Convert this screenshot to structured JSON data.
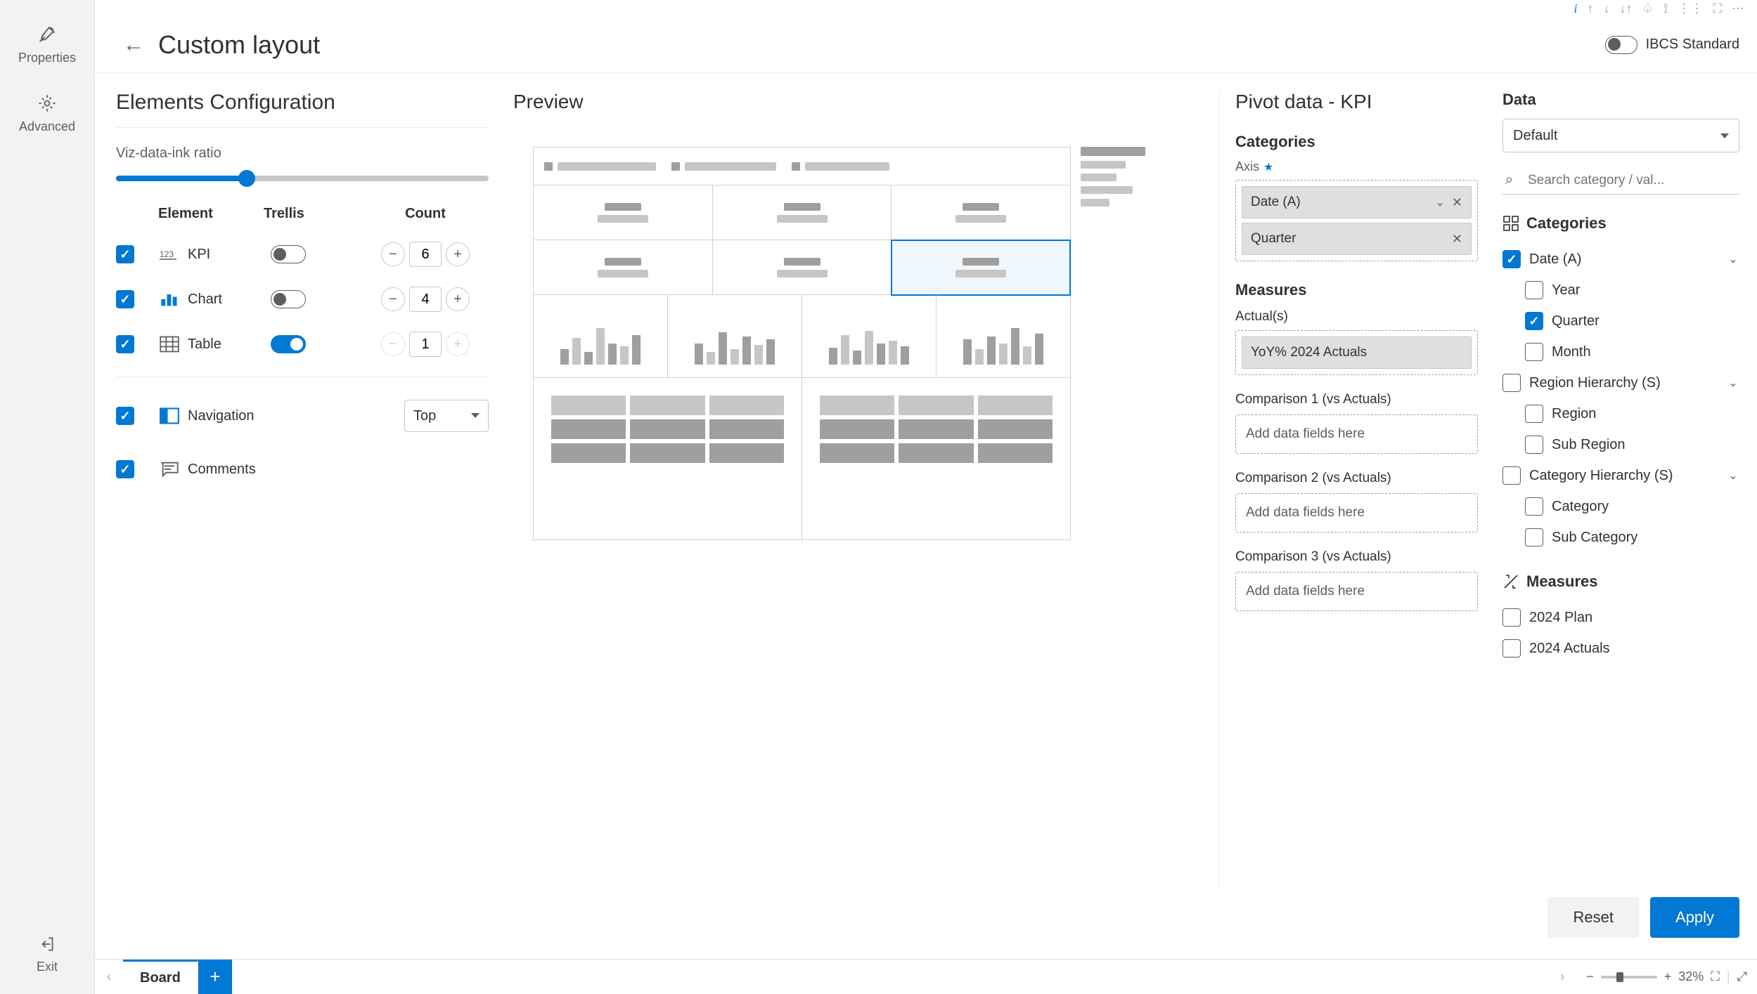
{
  "leftRail": {
    "properties": "Properties",
    "advanced": "Advanced",
    "exit": "Exit"
  },
  "header": {
    "title": "Custom layout",
    "ibcsLabel": "IBCS Standard",
    "ibcsOn": false
  },
  "elementsConfig": {
    "title": "Elements Configuration",
    "sliderLabel": "Viz-data-ink ratio",
    "sliderPct": 35,
    "headers": {
      "element": "Element",
      "trellis": "Trellis",
      "count": "Count"
    },
    "rows": {
      "kpi": {
        "checked": true,
        "label": "KPI",
        "trellisOn": false,
        "count": "6"
      },
      "chart": {
        "checked": true,
        "label": "Chart",
        "trellisOn": false,
        "count": "4"
      },
      "table": {
        "checked": true,
        "label": "Table",
        "trellisOn": true,
        "count": "1",
        "countDisabled": true
      }
    },
    "nav": {
      "checked": true,
      "label": "Navigation",
      "position": "Top"
    },
    "comments": {
      "checked": true,
      "label": "Comments"
    }
  },
  "preview": {
    "title": "Preview",
    "navItems": [
      140,
      130,
      120
    ],
    "kpiRows": 2,
    "kpiCols": 3,
    "selected": [
      1,
      2
    ],
    "chartBars": [
      [
        22,
        38,
        18,
        52,
        30,
        26,
        42
      ],
      [
        30,
        18,
        46,
        22,
        40,
        28,
        36
      ],
      [
        24,
        42,
        20,
        48,
        30,
        34,
        26
      ],
      [
        36,
        22,
        40,
        30,
        52,
        26,
        44
      ]
    ],
    "tableCells": 2
  },
  "pivot": {
    "title": "Pivot data - KPI",
    "categoriesH": "Categories",
    "axisLabel": "Axis",
    "axisChips": [
      {
        "text": "Date (A)",
        "hasChevron": true
      },
      {
        "text": "Quarter",
        "hasChevron": false
      }
    ],
    "measuresH": "Measures",
    "actualsLabel": "Actual(s)",
    "actualsChip": "YoY% 2024 Actuals",
    "comparisons": [
      {
        "label": "Comparison 1 (vs Actuals)",
        "placeholder": "Add data fields here"
      },
      {
        "label": "Comparison 2 (vs Actuals)",
        "placeholder": "Add data fields here"
      },
      {
        "label": "Comparison 3 (vs Actuals)",
        "placeholder": "Add data fields here"
      }
    ]
  },
  "data": {
    "title": "Data",
    "selectValue": "Default",
    "searchPlaceholder": "Search category / val...",
    "catHeader": "Categories",
    "tree": [
      {
        "type": "parent",
        "label": "Date (A)",
        "checked": true,
        "expand": "v"
      },
      {
        "type": "child",
        "label": "Year",
        "checked": false
      },
      {
        "type": "child",
        "label": "Quarter",
        "checked": true
      },
      {
        "type": "child",
        "label": "Month",
        "checked": false
      },
      {
        "type": "parent",
        "label": "Region Hierarchy (S)",
        "checked": false,
        "expand": "v"
      },
      {
        "type": "child",
        "label": "Region",
        "checked": false
      },
      {
        "type": "child",
        "label": "Sub Region",
        "checked": false
      },
      {
        "type": "parent",
        "label": "Category Hierarchy (S)",
        "checked": false,
        "expand": "v"
      },
      {
        "type": "child",
        "label": "Category",
        "checked": false
      },
      {
        "type": "child",
        "label": "Sub Category",
        "checked": false
      }
    ],
    "measHeader": "Measures",
    "measures": [
      {
        "label": "2024 Plan",
        "checked": false
      },
      {
        "label": "2024 Actuals",
        "checked": false
      }
    ]
  },
  "footer": {
    "reset": "Reset",
    "apply": "Apply"
  },
  "tabBar": {
    "tab": "Board",
    "zoom": "32%"
  }
}
